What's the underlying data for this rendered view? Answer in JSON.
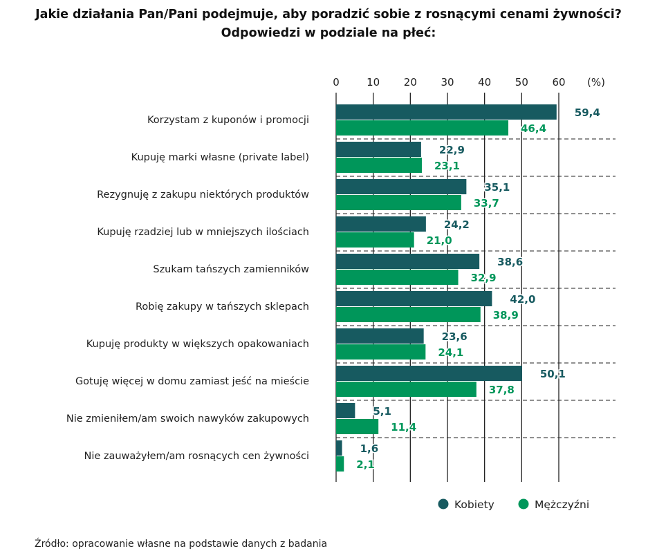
{
  "chart_data": {
    "type": "bar",
    "orientation": "horizontal",
    "title": [
      "Jakie działania Pan/Pani podejmuje, aby poradzić sobie z rosnącymi cenami żywności?",
      "Odpowiedzi w podziale na płeć:"
    ],
    "unit_label": "(%)",
    "xlim": [
      0,
      60
    ],
    "ticks": [
      0,
      10,
      20,
      30,
      40,
      50,
      60
    ],
    "grid": true,
    "legend_position": "bottom-right",
    "categories": [
      "Korzystam z kuponów i promocji",
      "Kupuję marki własne (private label)",
      "Rezygnuję z zakupu niektórych produktów",
      "Kupuję rzadziej lub w mniejszych ilościach",
      "Szukam tańszych zamienników",
      "Robię zakupy w tańszych sklepach",
      "Kupuję produkty w większych opakowaniach",
      "Gotuję więcej w domu zamiast jeść na mieście",
      "Nie zmieniłem/am swoich nawyków zakupowych",
      "Nie zauważyłem/am rosnących cen żywności"
    ],
    "series": [
      {
        "name": "Kobiety",
        "color": "#175a60",
        "values": [
          59.4,
          22.9,
          35.1,
          24.2,
          38.6,
          42.0,
          23.6,
          50.1,
          5.1,
          1.6
        ]
      },
      {
        "name": "Mężczyźni",
        "color": "#00965a",
        "values": [
          46.4,
          23.1,
          33.7,
          21.0,
          32.9,
          38.9,
          24.1,
          37.8,
          11.4,
          2.1
        ]
      }
    ]
  },
  "source": "Źródło: opracowanie własne na podstawie danych z badania"
}
